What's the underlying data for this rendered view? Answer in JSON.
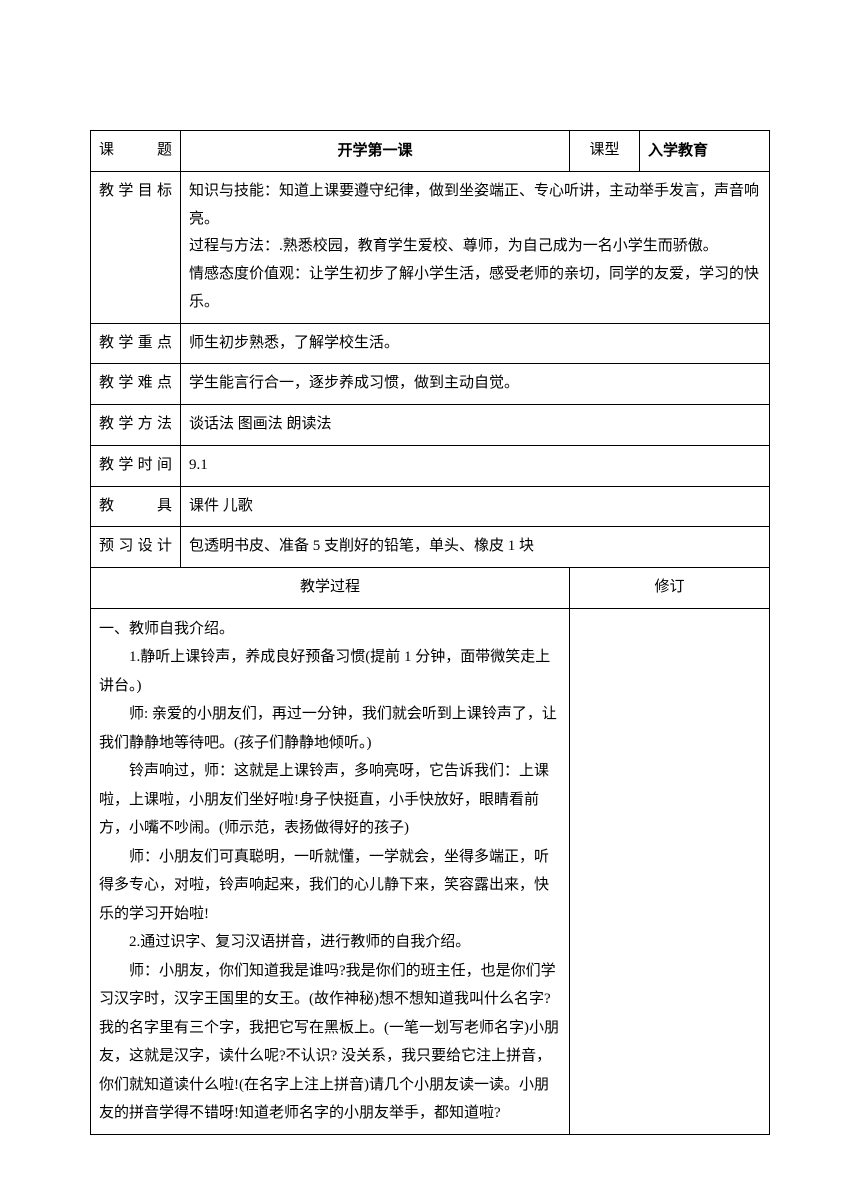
{
  "header": {
    "topic_label": "课题",
    "topic_value": "开学第一课",
    "type_label": "课型",
    "type_value": "入学教育"
  },
  "rows": {
    "objective": {
      "label": "教学目标",
      "content": "知识与技能：知道上课要遵守纪律，做到坐姿端正、专心听讲，主动举手发言，声音响亮。\n过程与方法：.熟悉校园，教育学生爱校、尊师，为自己成为一名小学生而骄傲。\n情感态度价值观：让学生初步了解小学生活，感受老师的亲切，同学的友爱，学习的快乐。"
    },
    "keypoint": {
      "label": "教学重点",
      "content": "师生初步熟悉，了解学校生活。"
    },
    "difficulty": {
      "label": "教学难点",
      "content": "学生能言行合一，逐步养成习惯，做到主动自觉。"
    },
    "method": {
      "label": "教学方法",
      "content": "谈话法 图画法   朗读法"
    },
    "time": {
      "label": "教学时间",
      "content": "9.1"
    },
    "tool": {
      "label": "教    具",
      "content": "课件 儿歌"
    },
    "preview": {
      "label": "预习设计",
      "content": "包透明书皮、准备 5 支削好的铅笔，单头、橡皮 1 块"
    }
  },
  "process": {
    "header_left": "教学过程",
    "header_right": "修订",
    "lines": [
      {
        "cls": "no-indent",
        "text": "一、教师自我介绍。"
      },
      {
        "cls": "indent-1",
        "text": "1.静听上课铃声，养成良好预备习惯(提前 1 分钟，面带微笑走上讲台。)"
      },
      {
        "cls": "indent-1",
        "text": "师: 亲爱的小朋友们，再过一分钟，我们就会听到上课铃声了，让我们静静地等待吧。(孩子们静静地倾听。)"
      },
      {
        "cls": "indent-1",
        "text": "铃声响过，师：这就是上课铃声，多响亮呀，它告诉我们：上课啦，上课啦，小朋友们坐好啦!身子快挺直，小手快放好，眼睛看前方，小嘴不吵闹。(师示范，表扬做得好的孩子)"
      },
      {
        "cls": "indent-1",
        "text": "师：小朋友们可真聪明，一听就懂，一学就会，坐得多端正，听得多专心，对啦，铃声响起来，我们的心儿静下来，笑容露出来，快乐的学习开始啦!"
      },
      {
        "cls": "indent-1",
        "text": "2.通过识字、复习汉语拼音，进行教师的自我介绍。"
      },
      {
        "cls": "indent-1",
        "text": "师：小朋友，你们知道我是谁吗?我是你们的班主任，也是你们学习汉字时，汉字王国里的女王。(故作神秘)想不想知道我叫什么名字?我的名字里有三个字，我把它写在黑板上。(一笔一划写老师名字)小朋友，这就是汉字，读什么呢?不认识? 没关系，我只要给它注上拼音，你们就知道读什么啦!(在名字上注上拼音)请几个小朋友读一读。小朋友的拼音学得不错呀!知道老师名字的小朋友举手，都知道啦?"
      }
    ]
  },
  "colors": {
    "border": "#000000",
    "background": "#ffffff",
    "text": "#000000"
  }
}
